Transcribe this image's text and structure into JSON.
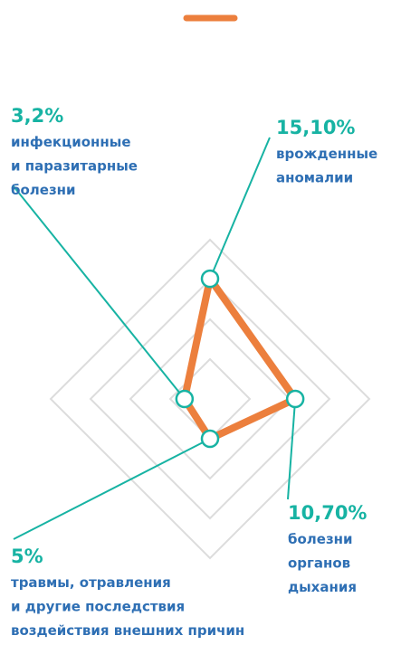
{
  "chart_data": {
    "type": "radar",
    "categories": [
      [
        "врожденные",
        "аномалии"
      ],
      [
        "болезни",
        "органов",
        "дыхания"
      ],
      [
        "травмы, отравления",
        "и другие последствия",
        "воздействия внешних причин"
      ],
      [
        "инфекционные",
        "и паразитарные",
        "болезни"
      ]
    ],
    "values": [
      15.1,
      10.7,
      5,
      3.2
    ],
    "value_labels": [
      "15,10%",
      "10,70%",
      "5%",
      "3,2%"
    ],
    "color": "#ec7f3d",
    "point_color": "#17b3a3",
    "label_color": "#2e6fb4",
    "ylim": [
      0,
      20
    ],
    "yticks": [
      5,
      10,
      15,
      20
    ],
    "grid": true
  }
}
